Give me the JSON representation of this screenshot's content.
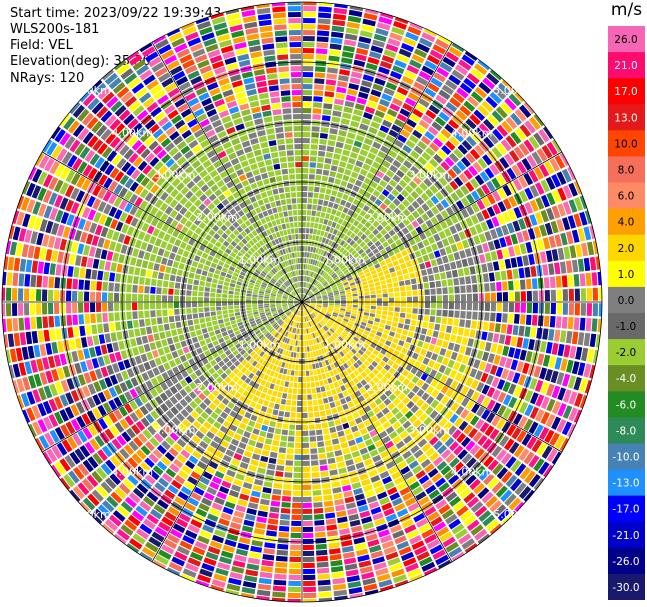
{
  "info": {
    "start_time": "Start time: 2023/09/22 19:39:43",
    "instrument": "WLS200s-181",
    "field": "Field: VEL",
    "elevation": "Elevation(deg): 35.30",
    "nrays": "NRays: 120"
  },
  "colorbar": {
    "unit": "m/s",
    "ticks": [
      "26.0",
      "21.0",
      "17.0",
      "13.0",
      "10.0",
      "8.0",
      "6.0",
      "4.0",
      "2.0",
      "1.0",
      "0.0",
      "-1.0",
      "-2.0",
      "-4.0",
      "-6.0",
      "-8.0",
      "-10.0",
      "-13.0",
      "-17.0",
      "-21.0",
      "-26.0",
      "-30.0"
    ],
    "colors": [
      "#f766b5",
      "#ff0a6e",
      "#ff0000",
      "#e41a1a",
      "#ff4500",
      "#f56f5a",
      "#ff8a66",
      "#ffa000",
      "#ffd700",
      "#ffff00",
      "#7f7f7f",
      "#696969",
      "#9acd32",
      "#6b8e23",
      "#228b22",
      "#2e8b57",
      "#4682b4",
      "#1e90ff",
      "#0000ff",
      "#0000cd",
      "#00008b",
      "#191970"
    ]
  },
  "range_rings": {
    "labels": [
      "1.00km",
      "2.00km",
      "3.00km",
      "4.00km",
      "5.00km"
    ]
  }
}
